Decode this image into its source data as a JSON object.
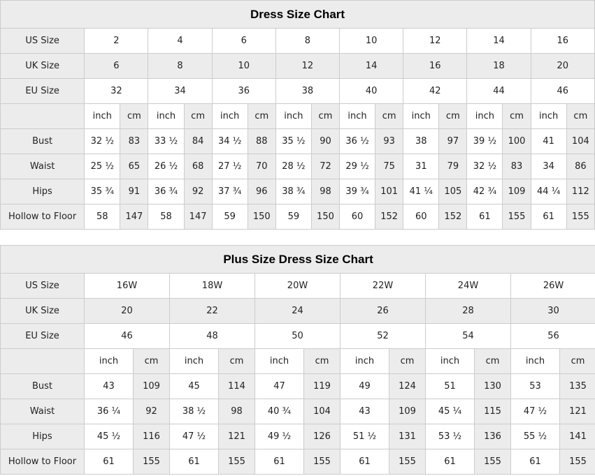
{
  "colors": {
    "shaded_cell": "#ececec",
    "border": "#cccccc",
    "text": "#222222",
    "title_text": "#000000",
    "background": "#ffffff"
  },
  "tables": [
    {
      "title": "Dress Size Chart",
      "size_rows": [
        {
          "label": "US Size",
          "shaded": false,
          "values": [
            "2",
            "4",
            "6",
            "8",
            "10",
            "12",
            "14",
            "16"
          ]
        },
        {
          "label": "UK Size",
          "shaded": true,
          "values": [
            "6",
            "8",
            "10",
            "12",
            "14",
            "16",
            "18",
            "20"
          ]
        },
        {
          "label": "EU Size",
          "shaded": false,
          "values": [
            "32",
            "34",
            "36",
            "38",
            "40",
            "42",
            "44",
            "46"
          ]
        }
      ],
      "unit_row": {
        "label": "",
        "units": [
          "inch",
          "cm"
        ]
      },
      "measure_rows": [
        {
          "label": "Bust",
          "pairs": [
            [
              "32 ½",
              "83"
            ],
            [
              "33 ½",
              "84"
            ],
            [
              "34 ½",
              "88"
            ],
            [
              "35 ½",
              "90"
            ],
            [
              "36 ½",
              "93"
            ],
            [
              "38",
              "97"
            ],
            [
              "39 ½",
              "100"
            ],
            [
              "41",
              "104"
            ]
          ]
        },
        {
          "label": "Waist",
          "pairs": [
            [
              "25 ½",
              "65"
            ],
            [
              "26 ½",
              "68"
            ],
            [
              "27 ½",
              "70"
            ],
            [
              "28 ½",
              "72"
            ],
            [
              "29 ½",
              "75"
            ],
            [
              "31",
              "79"
            ],
            [
              "32 ½",
              "83"
            ],
            [
              "34",
              "86"
            ]
          ]
        },
        {
          "label": "Hips",
          "pairs": [
            [
              "35 ¾",
              "91"
            ],
            [
              "36 ¾",
              "92"
            ],
            [
              "37 ¾",
              "96"
            ],
            [
              "38 ¾",
              "98"
            ],
            [
              "39 ¾",
              "101"
            ],
            [
              "41 ¼",
              "105"
            ],
            [
              "42 ¾",
              "109"
            ],
            [
              "44 ¼",
              "112"
            ]
          ]
        },
        {
          "label": "Hollow to Floor",
          "pairs": [
            [
              "58",
              "147"
            ],
            [
              "58",
              "147"
            ],
            [
              "59",
              "150"
            ],
            [
              "59",
              "150"
            ],
            [
              "60",
              "152"
            ],
            [
              "60",
              "152"
            ],
            [
              "61",
              "155"
            ],
            [
              "61",
              "155"
            ]
          ]
        }
      ]
    },
    {
      "title": "Plus Size Dress Size Chart",
      "size_rows": [
        {
          "label": "US Size",
          "shaded": false,
          "values": [
            "16W",
            "18W",
            "20W",
            "22W",
            "24W",
            "26W"
          ]
        },
        {
          "label": "UK Size",
          "shaded": true,
          "values": [
            "20",
            "22",
            "24",
            "26",
            "28",
            "30"
          ]
        },
        {
          "label": "EU Size",
          "shaded": false,
          "values": [
            "46",
            "48",
            "50",
            "52",
            "54",
            "56"
          ]
        }
      ],
      "unit_row": {
        "label": "",
        "units": [
          "inch",
          "cm"
        ]
      },
      "measure_rows": [
        {
          "label": "Bust",
          "pairs": [
            [
              "43",
              "109"
            ],
            [
              "45",
              "114"
            ],
            [
              "47",
              "119"
            ],
            [
              "49",
              "124"
            ],
            [
              "51",
              "130"
            ],
            [
              "53",
              "135"
            ]
          ]
        },
        {
          "label": "Waist",
          "pairs": [
            [
              "36 ¼",
              "92"
            ],
            [
              "38 ½",
              "98"
            ],
            [
              "40 ¾",
              "104"
            ],
            [
              "43",
              "109"
            ],
            [
              "45 ¼",
              "115"
            ],
            [
              "47 ½",
              "121"
            ]
          ]
        },
        {
          "label": "Hips",
          "pairs": [
            [
              "45 ½",
              "116"
            ],
            [
              "47 ½",
              "121"
            ],
            [
              "49 ½",
              "126"
            ],
            [
              "51 ½",
              "131"
            ],
            [
              "53 ½",
              "136"
            ],
            [
              "55 ½",
              "141"
            ]
          ]
        },
        {
          "label": "Hollow to Floor",
          "pairs": [
            [
              "61",
              "155"
            ],
            [
              "61",
              "155"
            ],
            [
              "61",
              "155"
            ],
            [
              "61",
              "155"
            ],
            [
              "61",
              "155"
            ],
            [
              "61",
              "155"
            ]
          ]
        }
      ]
    }
  ]
}
